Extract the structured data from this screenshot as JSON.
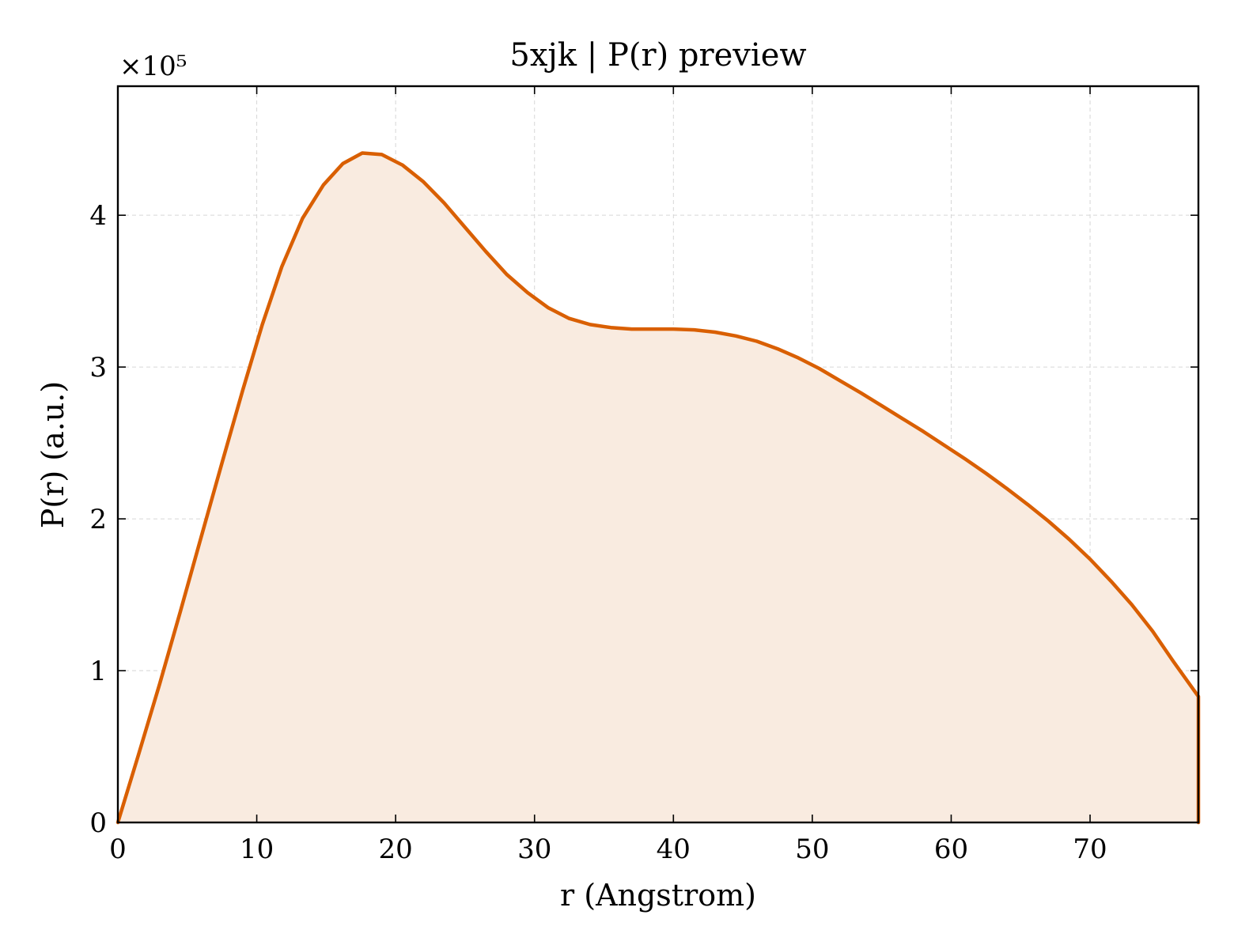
{
  "chart_data": {
    "type": "area",
    "title": "5xjk | P(r) preview",
    "xlabel": "r (Angstrom)",
    "ylabel": "P(r) (a.u.)",
    "y_multiplier_label": "×10⁵",
    "y_multiplier": 100000,
    "xlim": [
      0,
      77.8
    ],
    "ylim": [
      0,
      4.85
    ],
    "x_ticks": [
      0,
      10,
      20,
      30,
      40,
      50,
      60,
      70
    ],
    "y_ticks": [
      0,
      1,
      2,
      3,
      4
    ],
    "grid": true,
    "line_color": "#d95f02",
    "fill_color": "#f9ebe0",
    "series": [
      {
        "x": [
          0,
          1.5,
          3,
          4.5,
          6,
          7.5,
          9,
          10.4,
          11.8,
          13.3,
          14.8,
          16.2,
          17.6,
          19,
          20.5,
          22,
          23.5,
          25,
          26.5,
          28,
          29.5,
          31,
          32.5,
          34,
          35.5,
          37,
          38.5,
          40,
          41.5,
          43,
          44.5,
          46,
          47.5,
          49,
          50.5,
          52,
          53.5,
          55,
          56.5,
          58,
          59.5,
          61,
          62.5,
          64,
          65.5,
          67,
          68.5,
          70,
          71.5,
          73,
          74.5,
          76,
          77.8
        ],
        "y": [
          0,
          0.45,
          0.91,
          1.39,
          1.88,
          2.37,
          2.85,
          3.28,
          3.66,
          3.98,
          4.2,
          4.34,
          4.41,
          4.4,
          4.33,
          4.22,
          4.08,
          3.92,
          3.76,
          3.61,
          3.49,
          3.39,
          3.32,
          3.28,
          3.26,
          3.25,
          3.25,
          3.25,
          3.245,
          3.23,
          3.205,
          3.17,
          3.12,
          3.06,
          2.99,
          2.91,
          2.83,
          2.745,
          2.66,
          2.575,
          2.485,
          2.395,
          2.3,
          2.2,
          2.095,
          1.985,
          1.865,
          1.735,
          1.59,
          1.435,
          1.26,
          1.06,
          0.83
        ]
      }
    ]
  }
}
